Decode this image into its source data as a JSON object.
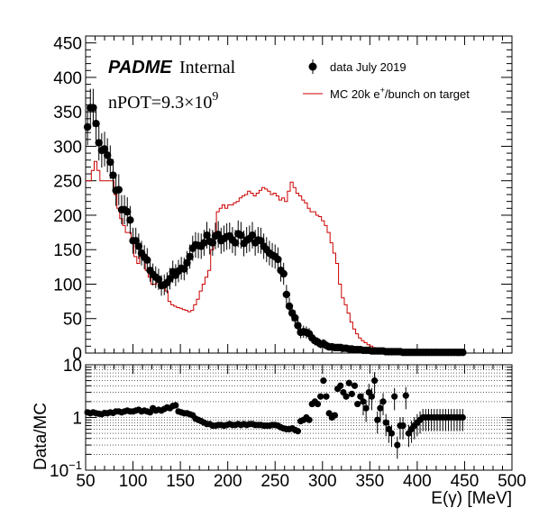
{
  "chart_data": [
    {
      "type": "scatter",
      "xlim": [
        50,
        500
      ],
      "ylim": [
        0,
        460
      ],
      "yticks": [
        0,
        50,
        100,
        150,
        200,
        250,
        300,
        350,
        400,
        450
      ],
      "xticks": [
        50,
        100,
        150,
        200,
        250,
        300,
        350,
        400,
        450,
        500
      ],
      "grid": false,
      "legend_position": "top-right",
      "legend": {
        "data_label": "data July 2019",
        "mc_label_prefix": "MC 20k e",
        "mc_label_sup": "+",
        "mc_label_suffix": "/bunch on target"
      },
      "annotations": {
        "brand": "PADME",
        "brand_suffix": "Internal",
        "npot_prefix": "nPOT=9.3×10",
        "npot_exp": "9"
      },
      "series": [
        {
          "name": "data July 2019",
          "type": "scatter",
          "color": "#000000",
          "x": [
            52,
            55,
            58,
            61,
            64,
            67,
            70,
            73,
            76,
            79,
            82,
            85,
            88,
            91,
            94,
            97,
            100,
            103,
            106,
            109,
            112,
            115,
            118,
            121,
            124,
            127,
            130,
            133,
            136,
            139,
            142,
            145,
            148,
            151,
            154,
            157,
            160,
            163,
            166,
            169,
            172,
            175,
            178,
            181,
            184,
            187,
            190,
            193,
            196,
            199,
            202,
            205,
            208,
            211,
            214,
            217,
            220,
            223,
            226,
            229,
            232,
            235,
            238,
            241,
            244,
            247,
            250,
            253,
            256,
            259,
            262,
            265,
            268,
            271,
            274,
            277,
            280,
            283,
            286,
            289,
            292,
            295,
            298,
            301,
            304,
            307,
            310,
            313,
            316,
            319,
            322,
            325,
            328,
            331,
            334,
            337,
            340,
            343,
            346,
            349,
            352,
            355,
            358,
            361,
            364,
            367,
            370,
            373,
            376,
            379,
            382,
            385,
            388,
            391,
            394,
            397,
            400,
            403,
            406,
            409,
            412,
            415,
            418,
            421,
            424,
            427,
            430,
            433,
            436,
            439,
            442,
            445,
            448
          ],
          "y": [
            328,
            356,
            356,
            333,
            305,
            294,
            296,
            287,
            277,
            258,
            236,
            237,
            208,
            208,
            205,
            193,
            163,
            163,
            155,
            145,
            139,
            135,
            120,
            114,
            110,
            107,
            98,
            99,
            102,
            108,
            118,
            113,
            119,
            123,
            122,
            131,
            140,
            152,
            157,
            156,
            155,
            160,
            171,
            162,
            160,
            170,
            172,
            163,
            166,
            169,
            170,
            164,
            160,
            173,
            171,
            159,
            164,
            166,
            171,
            160,
            164,
            163,
            155,
            150,
            145,
            142,
            140,
            136,
            120,
            115,
            85,
            68,
            58,
            51,
            40,
            30,
            31,
            30,
            28,
            22,
            18,
            16,
            13,
            14,
            11,
            9,
            9,
            8,
            8,
            8,
            7,
            7,
            6,
            6,
            5,
            5,
            5,
            4,
            4,
            4,
            3,
            3,
            3,
            3,
            3,
            2,
            2,
            2,
            2,
            2,
            2,
            1,
            1,
            1,
            1,
            1,
            1,
            1,
            1,
            1,
            1,
            1,
            1,
            1,
            1,
            1,
            1,
            1,
            1,
            1,
            1,
            1,
            1
          ]
        },
        {
          "name": "MC 20k e+/bunch on target",
          "type": "step",
          "color": "#cc0000",
          "x": [
            50,
            53,
            56,
            59,
            62,
            65,
            68,
            71,
            74,
            77,
            80,
            83,
            86,
            89,
            92,
            95,
            98,
            101,
            104,
            107,
            110,
            113,
            116,
            119,
            122,
            125,
            128,
            131,
            134,
            137,
            140,
            143,
            146,
            149,
            152,
            155,
            158,
            161,
            164,
            167,
            170,
            173,
            176,
            179,
            182,
            185,
            188,
            191,
            194,
            197,
            200,
            203,
            206,
            209,
            212,
            215,
            218,
            221,
            224,
            227,
            230,
            233,
            236,
            239,
            242,
            245,
            248,
            251,
            254,
            257,
            260,
            263,
            266,
            269,
            272,
            275,
            278,
            281,
            284,
            287,
            290,
            293,
            296,
            299,
            302,
            305,
            308,
            311,
            314,
            317,
            320,
            323,
            326,
            329,
            332,
            335,
            338,
            341,
            344,
            347,
            350,
            353,
            356,
            359,
            362,
            365,
            368,
            371,
            374,
            377,
            380,
            383,
            386,
            389,
            392,
            395,
            398,
            401,
            404,
            407,
            410,
            413,
            416,
            419,
            422,
            425,
            428,
            431,
            434,
            437,
            440,
            443,
            446,
            449
          ],
          "y": [
            250,
            250,
            265,
            278,
            265,
            250,
            250,
            250,
            250,
            250,
            230,
            210,
            195,
            185,
            175,
            175,
            165,
            140,
            130,
            145,
            135,
            120,
            110,
            100,
            100,
            105,
            100,
            95,
            90,
            75,
            70,
            68,
            66,
            65,
            63,
            62,
            60,
            62,
            70,
            78,
            90,
            100,
            110,
            120,
            150,
            175,
            205,
            210,
            215,
            210,
            215,
            215,
            218,
            220,
            225,
            228,
            230,
            235,
            232,
            228,
            232,
            236,
            240,
            238,
            235,
            230,
            232,
            228,
            222,
            225,
            220,
            235,
            248,
            240,
            232,
            228,
            222,
            218,
            210,
            205,
            205,
            200,
            198,
            192,
            185,
            175,
            160,
            145,
            130,
            100,
            80,
            70,
            58,
            45,
            35,
            28,
            22,
            18,
            15,
            12,
            10,
            8,
            7,
            6,
            5,
            4,
            4,
            3,
            3,
            3,
            2,
            2,
            2,
            2,
            2,
            2,
            2,
            2,
            2,
            2,
            2,
            2,
            2,
            2,
            2,
            2,
            2,
            2,
            2,
            2,
            2,
            2,
            2,
            2
          ]
        }
      ]
    },
    {
      "type": "scatter",
      "ylabel": "Data/MC",
      "xlabel": "E(γ) [MeV]",
      "xlim": [
        50,
        500
      ],
      "ylim": [
        0.1,
        10
      ],
      "yscale": "log",
      "xticks": [
        50,
        100,
        150,
        200,
        250,
        300,
        350,
        400,
        450,
        500
      ],
      "yticks": [
        {
          "value": 0.1,
          "base": "10",
          "exp": "−1"
        },
        {
          "value": 1,
          "base": "1",
          "exp": ""
        },
        {
          "value": 10,
          "base": "10",
          "exp": ""
        }
      ],
      "grid": true,
      "series": [
        {
          "name": "",
          "type": "scatter",
          "color": "#000000",
          "x": [
            52,
            55,
            58,
            61,
            64,
            67,
            70,
            73,
            76,
            79,
            82,
            85,
            88,
            91,
            94,
            97,
            100,
            103,
            106,
            109,
            112,
            115,
            118,
            121,
            124,
            127,
            130,
            133,
            136,
            139,
            142,
            145,
            148,
            151,
            154,
            157,
            160,
            163,
            166,
            169,
            172,
            175,
            178,
            181,
            184,
            187,
            190,
            193,
            196,
            199,
            202,
            205,
            208,
            211,
            214,
            217,
            220,
            223,
            226,
            229,
            232,
            235,
            238,
            241,
            244,
            247,
            250,
            253,
            256,
            259,
            262,
            265,
            268,
            271,
            274,
            277,
            280,
            283,
            286,
            289,
            292,
            295,
            298,
            301,
            304,
            307,
            310,
            313,
            316,
            319,
            322,
            325,
            328,
            331,
            334,
            337,
            340,
            343,
            346,
            349,
            352,
            355,
            358,
            361,
            364,
            367,
            370,
            373,
            376,
            379,
            382,
            385,
            388,
            391,
            394,
            397,
            400,
            403,
            406,
            409,
            412,
            415,
            418,
            421,
            424,
            427,
            430,
            433,
            436,
            439,
            442,
            445,
            448
          ],
          "y": [
            1.25,
            1.2,
            1.25,
            1.2,
            1.18,
            1.15,
            1.22,
            1.2,
            1.25,
            1.22,
            1.3,
            1.3,
            1.25,
            1.3,
            1.35,
            1.3,
            1.3,
            1.35,
            1.4,
            1.3,
            1.35,
            1.3,
            1.25,
            1.5,
            1.35,
            1.4,
            1.35,
            1.45,
            1.55,
            1.5,
            1.65,
            1.7,
            1.3,
            1.25,
            1.2,
            1.2,
            1.15,
            1.1,
            0.95,
            0.9,
            0.85,
            0.8,
            0.75,
            0.75,
            0.7,
            0.7,
            0.72,
            0.72,
            0.7,
            0.72,
            0.75,
            0.72,
            0.72,
            0.75,
            0.72,
            0.75,
            0.72,
            0.75,
            0.75,
            0.72,
            0.72,
            0.72,
            0.7,
            0.7,
            0.7,
            0.72,
            0.72,
            0.7,
            0.65,
            0.62,
            0.6,
            0.6,
            0.62,
            0.58,
            0.55,
            0.85,
            0.9,
            1.0,
            0.9,
            1.8,
            2.0,
            1.8,
            2.5,
            5.0,
            2.5,
            1.2,
            1.0,
            1.1,
            3.5,
            4.0,
            3.0,
            2.5,
            4.5,
            2.8,
            4.0,
            1.8,
            2.5,
            2.0,
            1.5,
            3.0,
            2.5,
            5.0,
            0.9,
            1.5,
            2.0,
            0.8,
            0.6,
            0.5,
            2.5,
            0.3,
            0.7,
            0.7,
            2.6,
            0.5,
            0.6,
            0.7,
            0.8,
            0.9,
            1.0,
            1.0,
            1.0,
            1.0,
            1.0,
            1.0,
            1.0,
            1.0,
            1.0,
            1.0,
            1.0,
            1.0,
            1.0,
            1.0,
            1.0
          ]
        }
      ]
    }
  ]
}
